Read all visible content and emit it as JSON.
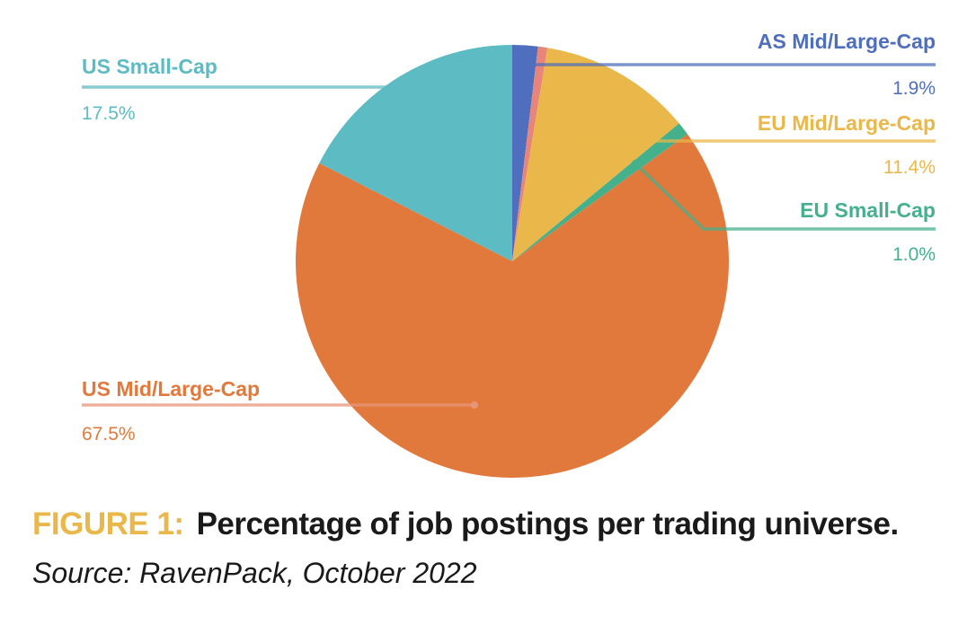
{
  "chart_data": {
    "type": "pie",
    "slices": [
      {
        "label": "AS Mid/Large-Cap",
        "value_text": "1.9%",
        "value": 1.9,
        "color": "#4F6FBE"
      },
      {
        "label": "",
        "value_text": "",
        "value": 0.7,
        "color": "#E7857A"
      },
      {
        "label": "EU Mid/Large-Cap",
        "value_text": "11.4%",
        "value": 11.4,
        "color": "#E9B74A"
      },
      {
        "label": "EU Small-Cap",
        "value_text": "1.0%",
        "value": 1.0,
        "color": "#45B08C"
      },
      {
        "label": "US Mid/Large-Cap",
        "value_text": "67.5%",
        "value": 67.5,
        "color": "#E2793C"
      },
      {
        "label": "US Small-Cap",
        "value_text": "17.5%",
        "value": 17.5,
        "color": "#5DBBC3"
      }
    ],
    "start": "12 o'clock",
    "direction": "clockwise"
  },
  "caption": {
    "figure_label": "FIGURE 1:",
    "title": "Percentage of job postings per trading universe.",
    "source": "Source: RavenPack, October 2022"
  }
}
